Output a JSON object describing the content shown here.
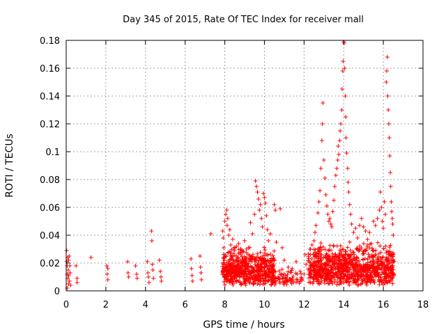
{
  "chart_data": {
    "type": "scatter",
    "title": "Day 345 of 2015, Rate Of TEC Index for receiver mall",
    "xlabel": "GPS time / hours",
    "ylabel": "ROTI / TECUs",
    "xlim": [
      0,
      18
    ],
    "ylim": [
      0,
      0.18
    ],
    "x_ticks": [
      0,
      2,
      4,
      6,
      8,
      10,
      12,
      14,
      16,
      18
    ],
    "y_ticks": [
      0,
      0.02,
      0.04,
      0.06,
      0.08,
      0.1,
      0.12,
      0.14,
      0.16,
      0.18
    ],
    "x_tick_labels": [
      "0",
      "2",
      "4",
      "6",
      "8",
      "10",
      "12",
      "14",
      "16",
      "18"
    ],
    "y_tick_labels": [
      "0",
      "0.02",
      "0.04",
      "0.06",
      "0.08",
      "0.1",
      "0.12",
      "0.14",
      "0.16",
      "0.18"
    ],
    "grid": true,
    "marker": "+",
    "color": "#ff0000",
    "series": [
      {
        "name": "ROTI",
        "points": [
          [
            0.02,
            0.029
          ],
          [
            0.03,
            0.021
          ],
          [
            0.05,
            0.018
          ],
          [
            0.06,
            0.012
          ],
          [
            0.07,
            0.024
          ],
          [
            0.08,
            0.009
          ],
          [
            0.1,
            0.015
          ],
          [
            0.11,
            0.005
          ],
          [
            0.12,
            0.022
          ],
          [
            0.13,
            0.011
          ],
          [
            0.15,
            0.025
          ],
          [
            0.16,
            0.007
          ],
          [
            0.18,
            0.018
          ],
          [
            0.2,
            0.013
          ],
          [
            0.22,
            0.004
          ],
          [
            0.05,
            0.002
          ],
          [
            0.5,
            0.018
          ],
          [
            0.55,
            0.009
          ],
          [
            0.55,
            0.006
          ],
          [
            1.25,
            0.024
          ],
          [
            2.05,
            0.018
          ],
          [
            2.07,
            0.012
          ],
          [
            2.1,
            0.008
          ],
          [
            2.1,
            0.016
          ],
          [
            3.1,
            0.021
          ],
          [
            3.12,
            0.013
          ],
          [
            3.15,
            0.01
          ],
          [
            3.5,
            0.018
          ],
          [
            3.55,
            0.012
          ],
          [
            3.58,
            0.009
          ],
          [
            4.1,
            0.021
          ],
          [
            4.12,
            0.013
          ],
          [
            4.15,
            0.01
          ],
          [
            4.18,
            0.006
          ],
          [
            4.3,
            0.043
          ],
          [
            4.32,
            0.036
          ],
          [
            4.35,
            0.019
          ],
          [
            4.37,
            0.015
          ],
          [
            4.4,
            0.009
          ],
          [
            4.7,
            0.022
          ],
          [
            4.75,
            0.014
          ],
          [
            4.78,
            0.01
          ],
          [
            4.8,
            0.007
          ],
          [
            6.3,
            0.023
          ],
          [
            6.32,
            0.016
          ],
          [
            6.35,
            0.011
          ],
          [
            6.37,
            0.007
          ],
          [
            6.75,
            0.025
          ],
          [
            6.78,
            0.017
          ],
          [
            6.8,
            0.013
          ],
          [
            6.82,
            0.008
          ],
          [
            7.3,
            0.041
          ],
          [
            7.9,
            0.043
          ],
          [
            7.92,
            0.038
          ],
          [
            7.95,
            0.031
          ],
          [
            8.0,
            0.05
          ],
          [
            8.05,
            0.055
          ],
          [
            8.1,
            0.058
          ],
          [
            8.12,
            0.047
          ],
          [
            8.15,
            0.052
          ],
          [
            8.2,
            0.04
          ],
          [
            8.25,
            0.044
          ],
          [
            8.3,
            0.033
          ],
          [
            8.4,
            0.037
          ],
          [
            8.5,
            0.029
          ],
          [
            8.6,
            0.032
          ],
          [
            8.7,
            0.034
          ],
          [
            8.8,
            0.03
          ],
          [
            8.9,
            0.028
          ],
          [
            9.0,
            0.036
          ],
          [
            9.1,
            0.03
          ],
          [
            9.2,
            0.031
          ],
          [
            9.3,
            0.049
          ],
          [
            9.4,
            0.041
          ],
          [
            9.5,
            0.055
          ],
          [
            9.55,
            0.079
          ],
          [
            9.6,
            0.075
          ],
          [
            9.65,
            0.071
          ],
          [
            9.7,
            0.066
          ],
          [
            9.75,
            0.058
          ],
          [
            9.8,
            0.062
          ],
          [
            9.85,
            0.052
          ],
          [
            9.9,
            0.046
          ],
          [
            9.95,
            0.07
          ],
          [
            10.0,
            0.067
          ],
          [
            10.05,
            0.063
          ],
          [
            10.1,
            0.054
          ],
          [
            10.15,
            0.044
          ],
          [
            10.2,
            0.036
          ],
          [
            10.3,
            0.041
          ],
          [
            10.5,
            0.062
          ],
          [
            10.55,
            0.058
          ],
          [
            10.6,
            0.035
          ],
          [
            10.8,
            0.059
          ],
          [
            10.9,
            0.031
          ],
          [
            11.0,
            0.022
          ],
          [
            11.2,
            0.017
          ],
          [
            11.4,
            0.016
          ],
          [
            11.6,
            0.021
          ],
          [
            11.8,
            0.014
          ],
          [
            12.0,
            0.012
          ],
          [
            12.05,
            0.026
          ],
          [
            12.1,
            0.019
          ],
          [
            12.3,
            0.03
          ],
          [
            12.4,
            0.033
          ],
          [
            12.5,
            0.036
          ],
          [
            12.55,
            0.042
          ],
          [
            12.6,
            0.047
          ],
          [
            12.7,
            0.056
          ],
          [
            12.75,
            0.064
          ],
          [
            12.8,
            0.072
          ],
          [
            12.85,
            0.088
          ],
          [
            12.9,
            0.108
          ],
          [
            12.92,
            0.12
          ],
          [
            12.95,
            0.135
          ],
          [
            13.0,
            0.094
          ],
          [
            13.05,
            0.081
          ],
          [
            13.1,
            0.069
          ],
          [
            13.15,
            0.061
          ],
          [
            13.2,
            0.055
          ],
          [
            13.25,
            0.05
          ],
          [
            13.3,
            0.052
          ],
          [
            13.35,
            0.048
          ],
          [
            13.4,
            0.046
          ],
          [
            13.45,
            0.057
          ],
          [
            13.5,
            0.065
          ],
          [
            13.55,
            0.075
          ],
          [
            13.6,
            0.083
          ],
          [
            13.65,
            0.088
          ],
          [
            13.7,
            0.094
          ],
          [
            13.72,
            0.104
          ],
          [
            13.75,
            0.098
          ],
          [
            13.8,
            0.108
          ],
          [
            13.82,
            0.115
          ],
          [
            13.85,
            0.12
          ],
          [
            13.9,
            0.13
          ],
          [
            13.92,
            0.145
          ],
          [
            13.95,
            0.158
          ],
          [
            13.97,
            0.165
          ],
          [
            14.0,
            0.179
          ],
          [
            14.02,
            0.178
          ],
          [
            14.05,
            0.16
          ],
          [
            14.08,
            0.14
          ],
          [
            14.1,
            0.125
          ],
          [
            14.12,
            0.11
          ],
          [
            14.15,
            0.099
          ],
          [
            14.2,
            0.088
          ],
          [
            14.22,
            0.078
          ],
          [
            14.25,
            0.071
          ],
          [
            14.3,
            0.062
          ],
          [
            14.35,
            0.055
          ],
          [
            14.4,
            0.048
          ],
          [
            14.5,
            0.042
          ],
          [
            14.6,
            0.045
          ],
          [
            14.7,
            0.038
          ],
          [
            14.8,
            0.047
          ],
          [
            14.9,
            0.052
          ],
          [
            15.0,
            0.046
          ],
          [
            15.1,
            0.043
          ],
          [
            15.2,
            0.037
          ],
          [
            15.3,
            0.042
          ],
          [
            15.4,
            0.034
          ],
          [
            15.5,
            0.05
          ],
          [
            15.6,
            0.047
          ],
          [
            15.7,
            0.052
          ],
          [
            15.8,
            0.058
          ],
          [
            15.85,
            0.071
          ],
          [
            15.9,
            0.06
          ],
          [
            15.95,
            0.05
          ],
          [
            16.0,
            0.045
          ],
          [
            16.05,
            0.064
          ],
          [
            16.1,
            0.055
          ],
          [
            16.15,
            0.15
          ],
          [
            16.17,
            0.158
          ],
          [
            16.2,
            0.168
          ],
          [
            16.22,
            0.14
          ],
          [
            16.25,
            0.13
          ],
          [
            16.27,
            0.12
          ],
          [
            16.3,
            0.11
          ],
          [
            16.32,
            0.097
          ],
          [
            16.35,
            0.085
          ],
          [
            16.37,
            0.075
          ],
          [
            16.4,
            0.064
          ],
          [
            16.42,
            0.057
          ],
          [
            16.45,
            0.052
          ],
          [
            16.47,
            0.048
          ],
          [
            16.5,
            0.04
          ]
        ],
        "bands": [
          {
            "x0": 7.85,
            "x1": 10.5,
            "ymin": 0.004,
            "ymax": 0.032,
            "count": 620
          },
          {
            "x0": 10.5,
            "x1": 11.9,
            "ymin": 0.004,
            "ymax": 0.016,
            "count": 70
          },
          {
            "x0": 12.2,
            "x1": 16.55,
            "ymin": 0.004,
            "ymax": 0.036,
            "count": 950
          }
        ]
      }
    ]
  }
}
